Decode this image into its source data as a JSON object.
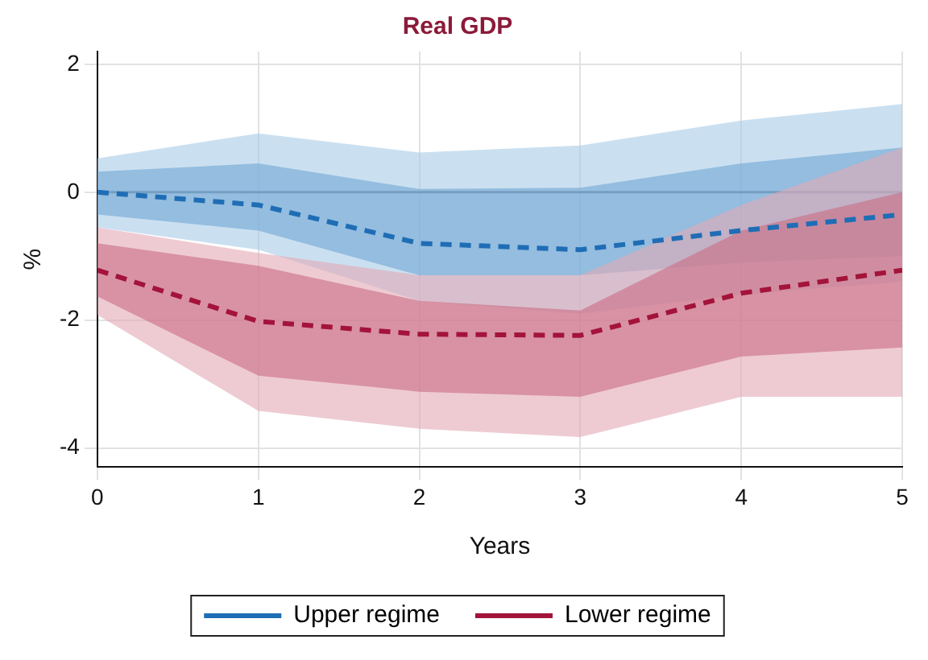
{
  "chart_data": {
    "type": "line",
    "title": "Real GDP",
    "xlabel": "Years",
    "ylabel": "%",
    "x": [
      0,
      1,
      2,
      3,
      4,
      5
    ],
    "series": [
      {
        "name": "Upper regime",
        "color": "#1f6db5",
        "values": [
          0,
          -0.2,
          -0.8,
          -0.9,
          -0.6,
          -0.35
        ],
        "lower": [
          -0.35,
          -0.6,
          -1.3,
          -1.3,
          -1.1,
          -1.0
        ],
        "upper": [
          0.32,
          0.45,
          0.05,
          0.07,
          0.45,
          0.7
        ]
      },
      {
        "color": "#a7cbe8",
        "values": [
          null,
          null,
          null,
          null,
          null,
          null
        ],
        "lower": [
          -0.55,
          -0.9,
          -1.7,
          -1.9,
          -1.6,
          -1.4
        ],
        "upper": [
          0.53,
          0.92,
          0.62,
          0.73,
          1.12,
          1.38
        ]
      },
      {
        "name": "Lower regime",
        "color": "#a3133a",
        "values": [
          -1.22,
          -2.02,
          -2.22,
          -2.24,
          -1.58,
          -1.22
        ],
        "lower": [
          -1.63,
          -2.87,
          -3.12,
          -3.2,
          -2.57,
          -2.43
        ],
        "upper": [
          -0.8,
          -1.15,
          -1.7,
          -1.85,
          -0.6,
          0
        ]
      },
      {
        "color": "#e3a9b6",
        "values": [
          null,
          null,
          null,
          null,
          null,
          null
        ],
        "lower": [
          -1.92,
          -3.42,
          -3.7,
          -3.83,
          -3.2,
          -3.2
        ],
        "upper": [
          -0.55,
          -0.95,
          -1.3,
          -1.3,
          -0.2,
          0.7
        ]
      }
    ],
    "xlim": [
      0,
      5
    ],
    "xticks": [
      0,
      1,
      2,
      3,
      4,
      5
    ],
    "ylim": [
      -4.3,
      2.2
    ],
    "yticks": [
      -4,
      -2,
      0,
      2
    ],
    "ref_lines": [
      {
        "axis": "y",
        "value": 0,
        "color": "#3a3f48"
      }
    ],
    "grid": true,
    "legend": "bottom",
    "line_style": "dashed",
    "marker": "none"
  }
}
